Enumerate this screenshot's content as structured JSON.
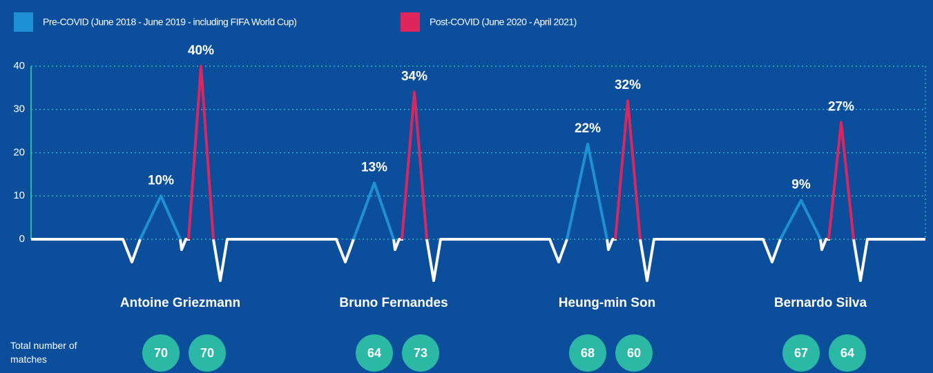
{
  "chart_data": {
    "type": "spike",
    "categories": [
      "Antoine Griezmann",
      "Bruno Fernandes",
      "Heung-min Son",
      "Bernardo Silva"
    ],
    "series": [
      {
        "name": "Pre-COVID (June 2018 - June 2019 - including FIFA World Cup)",
        "color": "#1e90d6",
        "values": [
          10,
          13,
          22,
          9
        ],
        "value_labels": [
          "10%",
          "13%",
          "22%",
          "9%"
        ],
        "matches": [
          70,
          64,
          68,
          67
        ]
      },
      {
        "name": "Post-COVID (June 2020 - April  2021)",
        "color": "#e0245e",
        "values": [
          40,
          34,
          32,
          27
        ],
        "value_labels": [
          "40%",
          "34%",
          "32%",
          "27%"
        ],
        "matches": [
          70,
          73,
          60,
          64
        ]
      }
    ],
    "matches_label": "Total number of matches",
    "ylim": [
      0,
      40
    ],
    "yticks": [
      0,
      10,
      20,
      30,
      40
    ],
    "grid": true
  }
}
